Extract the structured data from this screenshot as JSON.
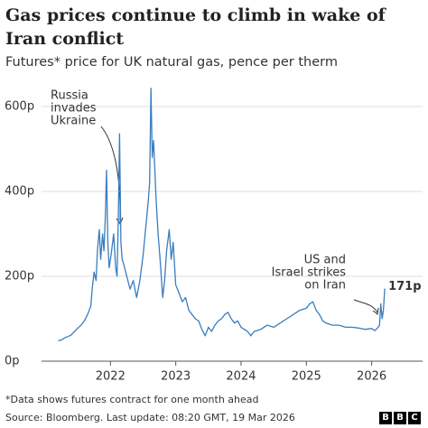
{
  "chart_data": {
    "type": "line",
    "title": "Gas prices continue to climb in wake of Iran conflict",
    "subtitle": "Futures* price for UK natural gas, pence per therm",
    "xlim": [
      2021.0,
      2026.6
    ],
    "xticks": [
      2022,
      2023,
      2024,
      2025,
      2026
    ],
    "ylim": [
      0,
      650
    ],
    "yticks": [
      {
        "value": 0,
        "label": "0p"
      },
      {
        "value": 200,
        "label": "200p"
      },
      {
        "value": 400,
        "label": "400p"
      },
      {
        "value": 600,
        "label": "600p"
      }
    ],
    "grid": true,
    "x": [
      2021.2,
      2021.25,
      2021.3,
      2021.35,
      2021.4,
      2021.45,
      2021.5,
      2021.55,
      2021.6,
      2021.65,
      2021.7,
      2021.72,
      2021.75,
      2021.78,
      2021.8,
      2021.83,
      2021.85,
      2021.88,
      2021.9,
      2021.92,
      2021.94,
      2021.96,
      2021.98,
      2022.01,
      2022.05,
      2022.08,
      2022.1,
      2022.12,
      2022.14,
      2022.16,
      2022.18,
      2022.2,
      2022.25,
      2022.3,
      2022.35,
      2022.4,
      2022.45,
      2022.5,
      2022.55,
      2022.58,
      2022.6,
      2022.62,
      2022.64,
      2022.66,
      2022.7,
      2022.73,
      2022.76,
      2022.8,
      2022.83,
      2022.86,
      2022.9,
      2022.93,
      2022.96,
      2023.0,
      2023.05,
      2023.1,
      2023.15,
      2023.2,
      2023.25,
      2023.3,
      2023.35,
      2023.4,
      2023.45,
      2023.5,
      2023.55,
      2023.6,
      2023.65,
      2023.7,
      2023.75,
      2023.8,
      2023.85,
      2023.9,
      2023.95,
      2024.0,
      2024.05,
      2024.1,
      2024.15,
      2024.2,
      2024.3,
      2024.4,
      2024.5,
      2024.6,
      2024.7,
      2024.8,
      2024.9,
      2025.0,
      2025.05,
      2025.1,
      2025.15,
      2025.2,
      2025.25,
      2025.3,
      2025.4,
      2025.5,
      2025.6,
      2025.7,
      2025.8,
      2025.9,
      2026.0,
      2026.05,
      2026.1,
      2026.12,
      2026.14,
      2026.16,
      2026.18,
      2026.2
    ],
    "series": [
      {
        "name": "UK natural gas",
        "color": "#3a7dbf",
        "values": [
          48,
          50,
          55,
          58,
          62,
          70,
          78,
          85,
          95,
          110,
          130,
          170,
          210,
          190,
          260,
          310,
          240,
          300,
          260,
          330,
          450,
          280,
          220,
          250,
          300,
          220,
          200,
          330,
          536,
          280,
          240,
          230,
          200,
          170,
          190,
          150,
          190,
          250,
          330,
          380,
          420,
          643,
          480,
          520,
          380,
          300,
          240,
          150,
          190,
          260,
          310,
          240,
          280,
          180,
          160,
          140,
          150,
          120,
          110,
          100,
          95,
          75,
          60,
          80,
          70,
          85,
          95,
          100,
          110,
          115,
          100,
          90,
          95,
          80,
          75,
          70,
          60,
          70,
          75,
          85,
          80,
          90,
          100,
          110,
          120,
          125,
          135,
          140,
          120,
          110,
          95,
          90,
          85,
          85,
          80,
          80,
          78,
          75,
          77,
          72,
          80,
          85,
          135,
          100,
          120,
          171
        ],
        "value_labels": [
          null,
          null,
          null,
          null,
          null,
          null,
          null,
          null,
          null,
          null,
          null,
          null,
          null,
          null,
          null,
          null,
          null,
          null,
          null,
          null,
          null,
          null,
          null,
          null,
          null,
          null,
          null,
          null,
          null,
          null,
          null,
          null,
          null,
          null,
          null,
          null,
          null,
          null,
          null,
          null,
          null,
          null,
          null,
          null,
          null,
          null,
          null,
          null,
          null,
          null,
          null,
          null,
          null,
          null,
          null,
          null,
          null,
          null,
          null,
          null,
          null,
          null,
          null,
          null,
          null,
          null,
          null,
          null,
          null,
          null,
          null,
          null,
          null,
          null,
          null,
          null,
          null,
          null,
          null,
          null,
          null,
          null,
          null,
          null,
          null,
          null,
          null,
          null,
          null,
          null,
          null,
          null,
          null,
          null,
          null,
          null,
          null,
          null,
          null,
          null,
          null,
          null,
          null,
          null,
          null,
          "171p"
        ]
      }
    ],
    "annotations": [
      {
        "lines": [
          "Russia",
          "invades",
          "Ukraine"
        ]
      },
      {
        "lines": [
          "US and",
          "Israel strikes",
          "on Iran"
        ]
      }
    ],
    "footnote": "*Data shows futures contract for one month ahead",
    "source": "Source: Bloomberg. Last update: 08:20 GMT, 19 Mar 2026",
    "logo": [
      "B",
      "B",
      "C"
    ]
  }
}
